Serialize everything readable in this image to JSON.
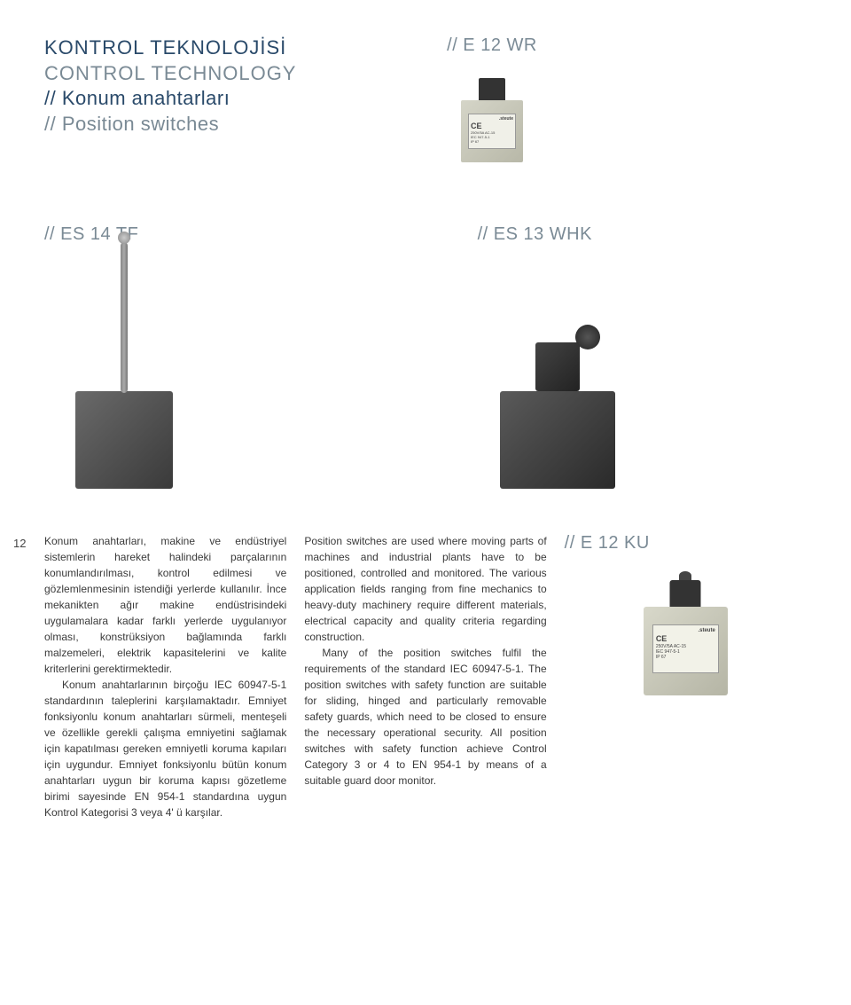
{
  "header": {
    "title_tr": "KONTROL TEKNOLOJİSİ",
    "title_en": "CONTROL TECHNOLOGY",
    "subtitle_tr": "// Konum anahtarları",
    "subtitle_en": "// Position switches",
    "product_top_right": "// E 12 WR"
  },
  "products": {
    "es14": "// ES 14 TF",
    "es13": "// ES 13 WHK",
    "e12ku": "// E 12 KU"
  },
  "page_number": "12",
  "text_tr": {
    "p1": "Konum anahtarları, makine ve endüstriyel sistemlerin hareket halindeki parçalarının konumlandırılması, kontrol edilmesi ve gözlemlenmesinin istendiği yerlerde kullanılır. İnce mekanikten ağır makine endüstrisindeki uygulamalara kadar farklı yerlerde uygulanıyor olması, konstrüksiyon bağlamında farklı malzemeleri, elektrik kapasitelerini ve kalite kriterlerini gerektirmektedir.",
    "p2": "Konum anahtarlarının birçoğu IEC 60947-5-1 standardının taleplerini karşılamaktadır. Emniyet fonksiyonlu konum anahtarları sürmeli, menteşeli ve özellikle gerekli çalışma emniyetini sağlamak için kapatılması gereken emniyetli koruma kapıları için uygundur. Emniyet fonksiyonlu bütün konum anahtarları uygun bir koruma kapısı gözetleme birimi sayesinde EN 954-1 standardına uygun Kontrol Kategorisi 3 veya 4' ü karşılar."
  },
  "text_en": {
    "p1": "Position switches are used where moving parts of machines and industrial plants have to be positioned, controlled and monitored. The various application fields ranging from fine mechanics to heavy-duty machinery require different materials, electrical capacity and quality criteria regarding construction.",
    "p2": "Many of the position switches fulfil the requirements of the standard IEC 60947-5-1. The position switches with safety function are suitable for sliding, hinged and particularly removable safety guards, which need to be closed to ensure the necessary operational security. All position switches with safety function achieve Control Category 3 or 4 to EN 954-1 by means of a suitable guard door monitor."
  },
  "plate": {
    "brand": ".steute",
    "ce": "CE",
    "spec1": "250V/5A AC-15",
    "spec2": "IEC 947-5-1",
    "spec3": "IP 67"
  },
  "colors": {
    "brand_blue": "#2a4a6a",
    "subtitle_gray": "#7a8a95",
    "body_text": "#3a3a3a",
    "gray_text": "#888888",
    "background": "#ffffff"
  },
  "typography": {
    "title_fontsize": 22,
    "product_label_fontsize": 20,
    "body_fontsize": 12,
    "page_num_fontsize": 13
  }
}
